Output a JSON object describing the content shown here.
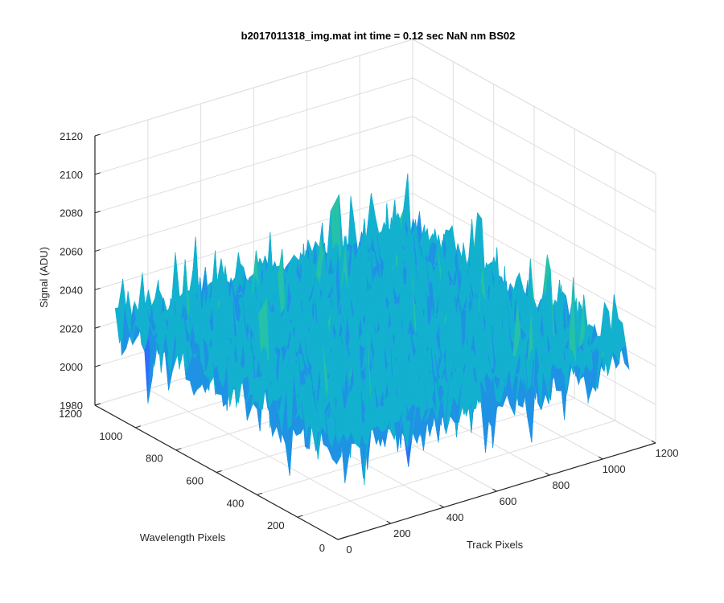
{
  "chart_data": {
    "type": "surface3d",
    "title": "b2017011318_img.mat int time = 0.12 sec  NaN nm BS02",
    "xlabel": "Track Pixels",
    "ylabel": "Wavelength Pixels",
    "zlabel": "Signal (ADU)",
    "xlim": [
      0,
      1200
    ],
    "ylim": [
      0,
      1200
    ],
    "zlim": [
      1980,
      2120
    ],
    "xticks": [
      0,
      200,
      400,
      600,
      800,
      1000,
      1200
    ],
    "yticks": [
      0,
      200,
      400,
      600,
      800,
      1000,
      1200
    ],
    "zticks": [
      1980,
      2000,
      2020,
      2040,
      2060,
      2080,
      2100,
      2120
    ],
    "xtick_labels": [
      "0",
      "200",
      "400",
      "600",
      "800",
      "1000",
      "1200"
    ],
    "ytick_labels": [
      "0",
      "200",
      "400",
      "600",
      "800",
      "1000",
      "1200"
    ],
    "ztick_labels": [
      "1980",
      "2000",
      "2020",
      "2040",
      "2060",
      "2080",
      "2100",
      "2120"
    ],
    "surface": {
      "x_range": [
        0,
        1100
      ],
      "y_range": [
        0,
        1100
      ],
      "mean_signal": 2030,
      "noise_min": 1993,
      "noise_max": 2108,
      "colormap": "parula"
    },
    "grid": true
  }
}
